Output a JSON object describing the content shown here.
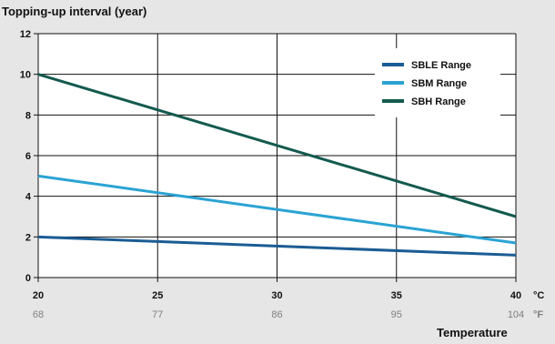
{
  "chart_data": {
    "type": "line",
    "ylabel": "Topping-up interval (year)",
    "xlabel": "Temperature",
    "x_celsius": [
      20,
      25,
      30,
      35,
      40
    ],
    "x_fahrenheit": [
      "68",
      "77",
      "86",
      "95",
      "104"
    ],
    "x_unit_primary": "°C",
    "x_unit_secondary": "°F",
    "xlim": [
      20,
      40
    ],
    "ylim": [
      0,
      12
    ],
    "yticks": [
      0,
      2,
      4,
      6,
      8,
      10,
      12
    ],
    "grid": true,
    "legend_position": "top-right",
    "series": [
      {
        "name": "SBLE Range",
        "color": "#1b5c94",
        "x": [
          20,
          40
        ],
        "y": [
          2.0,
          1.1
        ]
      },
      {
        "name": "SBM Range",
        "color": "#2aa3d3",
        "x": [
          20,
          40
        ],
        "y": [
          5.0,
          1.7
        ]
      },
      {
        "name": "SBH Range",
        "color": "#135a4e",
        "x": [
          20,
          40
        ],
        "y": [
          10.0,
          3.0
        ]
      }
    ]
  },
  "colors": {
    "background": "#e6e6e7",
    "plot_background": "#ffffff",
    "grid": "#111111",
    "secondary_tick": "#7f7f7f"
  }
}
